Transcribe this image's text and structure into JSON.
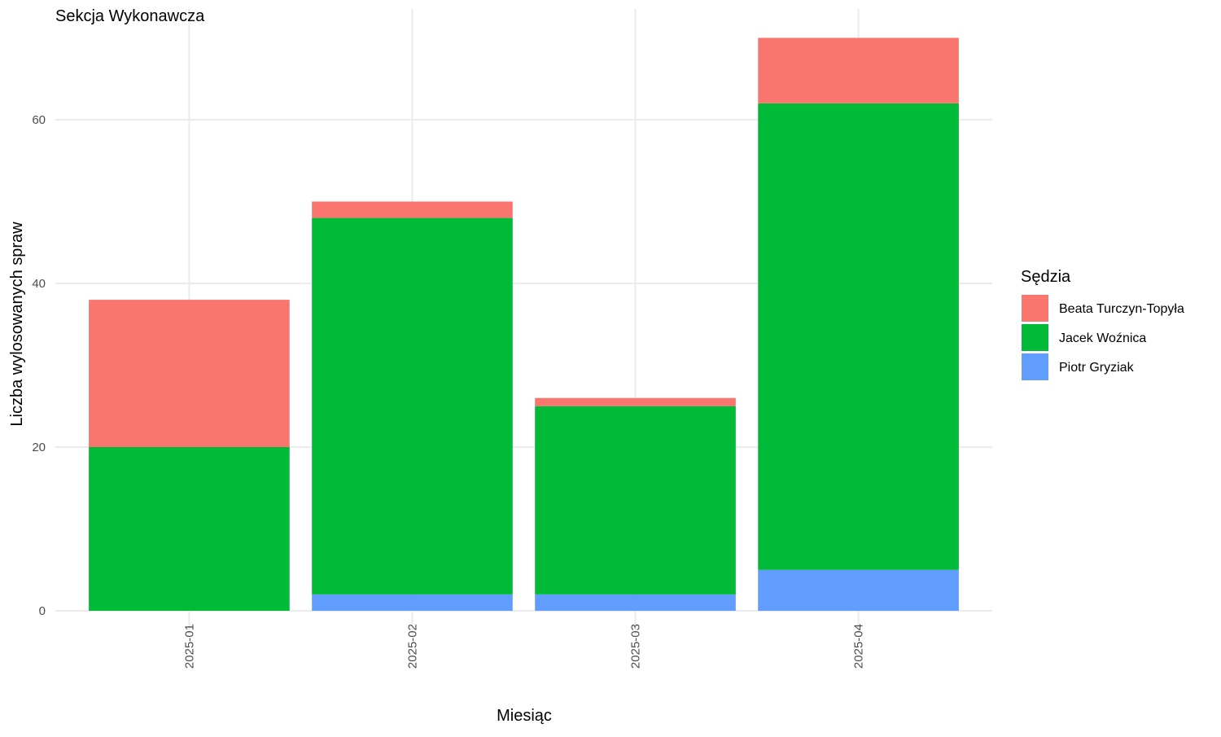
{
  "chart_data": {
    "type": "bar",
    "stacked": true,
    "title": "Sekcja Wykonawcza",
    "xlabel": "Miesiąc",
    "ylabel": "Liczba wylosowanych spraw",
    "categories": [
      "2025-01",
      "2025-02",
      "2025-03",
      "2025-04"
    ],
    "ylim": [
      0,
      70
    ],
    "yticks": [
      0,
      20,
      40,
      60
    ],
    "grid": true,
    "legend_position": "right",
    "legend_title": "Sędzia",
    "series": [
      {
        "name": "Piotr Gryziak",
        "color": "#619CFF",
        "values": [
          0,
          2,
          2,
          5
        ]
      },
      {
        "name": "Jacek Woźnica",
        "color": "#00BA38",
        "values": [
          20,
          46,
          23,
          57
        ]
      },
      {
        "name": "Beata Turczyn-Topyła",
        "color": "#F8766D",
        "values": [
          18,
          2,
          1,
          8
        ]
      }
    ],
    "legend_order": [
      "Beata Turczyn-Topyła",
      "Jacek Woźnica",
      "Piotr Gryziak"
    ]
  }
}
